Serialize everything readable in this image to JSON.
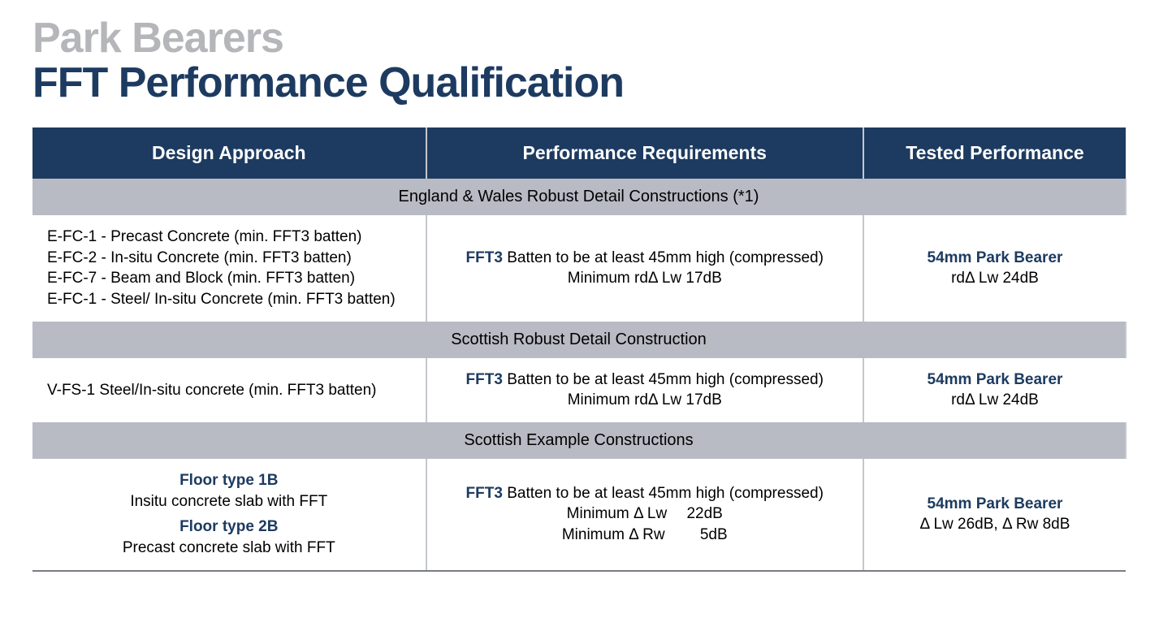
{
  "titles": {
    "line1": "Park Bearers",
    "line2": "FFT Performance Qualification"
  },
  "colors": {
    "header_bg": "#1d3b60",
    "header_text": "#ffffff",
    "section_bg": "#b8bac4",
    "title_grey": "#b5b6b9",
    "title_navy": "#1d3b60",
    "accent_navy": "#1d3b60",
    "border": "#c5c7cf",
    "body_text": "#000000"
  },
  "table": {
    "columns": [
      "Design Approach",
      "Performance Requirements",
      "Tested Performance"
    ],
    "column_widths_pct": [
      36,
      40,
      24
    ],
    "sections": [
      {
        "title": "England & Wales Robust Detail Constructions (*1)",
        "row": {
          "design_lines": [
            "E-FC-1 - Precast Concrete (min. FFT3 batten)",
            "E-FC-2 - In-situ Concrete (min. FFT3 batten)",
            "E-FC-7 - Beam and Block (min. FFT3 batten)",
            "E-FC-1 - Steel/ In-situ Concrete (min. FFT3 batten)"
          ],
          "design_align": "left",
          "perf_strong": "FFT3",
          "perf_line1_rest": " Batten to be at least 45mm high (compressed)",
          "perf_extra_lines": [
            "Minimum rdΔ Lw 17dB"
          ],
          "tested_strong": "54mm Park Bearer",
          "tested_lines": [
            "rdΔ Lw 24dB"
          ]
        }
      },
      {
        "title": "Scottish Robust Detail Construction",
        "row": {
          "design_lines": [
            "V-FS-1 Steel/In-situ concrete (min. FFT3 batten)"
          ],
          "design_align": "left",
          "perf_strong": "FFT3",
          "perf_line1_rest": " Batten to be at least 45mm high (compressed)",
          "perf_extra_lines": [
            "Minimum rdΔ Lw 17dB"
          ],
          "tested_strong": "54mm Park Bearer",
          "tested_lines": [
            "rdΔ Lw 24dB"
          ]
        }
      },
      {
        "title": "Scottish Example Constructions",
        "row": {
          "design_blocks": [
            {
              "heading": "Floor type 1B",
              "sub": "Insitu concrete slab with FFT"
            },
            {
              "heading": "Floor type 2B",
              "sub": "Precast concrete slab with FFT"
            }
          ],
          "design_align": "center",
          "perf_strong": "FFT3",
          "perf_line1_rest": " Batten to be at least 45mm high (compressed)",
          "perf_extra_lines": [
            "Minimum Δ Lw  22dB",
            "Minimum Δ Rw   5dB"
          ],
          "tested_strong": "54mm Park Bearer",
          "tested_lines": [
            "Δ Lw 26dB, Δ Rw 8dB"
          ]
        }
      }
    ]
  }
}
